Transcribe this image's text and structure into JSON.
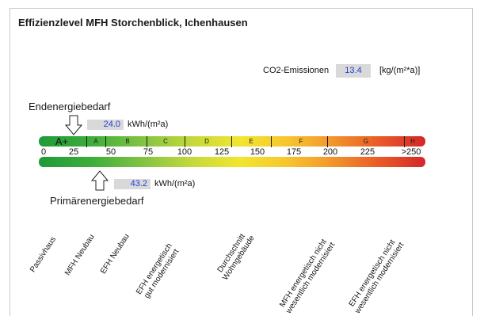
{
  "title": "Effizienzlevel MFH Storchenblick, Ichenhausen",
  "co2": {
    "label": "CO2-Emissionen",
    "value": "13.4",
    "unit": "[kg/(m²*a)]"
  },
  "endenergie": {
    "label": "Endenergiebedarf",
    "value": "24.0",
    "unit": "kWh/(m²a)"
  },
  "primaerenergie": {
    "label": "Primärenergiebedarf",
    "value": "43.2",
    "unit": "kWh/(m²a)"
  },
  "classes": [
    "A+",
    "A",
    "B",
    "C",
    "D",
    "E",
    "F",
    "G",
    "H"
  ],
  "scale": [
    "0",
    "25",
    "50",
    "75",
    "100",
    "125",
    "150",
    "175",
    "200",
    "225",
    ">250"
  ],
  "categories": {
    "passivhaus": "Passivhaus",
    "mfh_neubau": "MFH Neubau",
    "efh_neubau": "EFH Neubau",
    "efh_gut_1": "EFH energetisch",
    "efh_gut_2": "gut modernisiert",
    "durchschnitt_1": "Durchschnitt",
    "durchschnitt_2": "Wohngebäude",
    "mfh_nicht_1": "MFH energetisch nicht",
    "mfh_nicht_2": "wesentlich modernisiert",
    "efh_nicht_1": "EFH energetisch nicht",
    "efh_nicht_2": "wesentlich modernisiert"
  },
  "colors": {
    "value_text": "#1f3fd8",
    "value_box": "#d9d9d9",
    "band_start": "#1f9a3a",
    "band_end": "#d5262a"
  }
}
